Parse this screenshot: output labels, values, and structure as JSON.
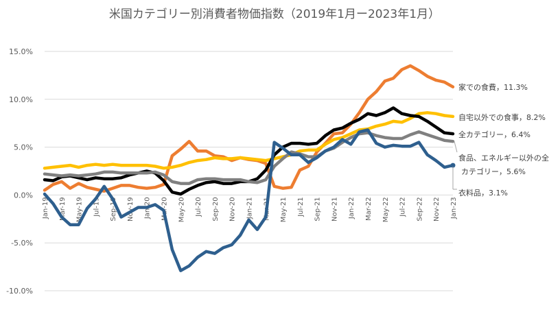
{
  "chart_data": {
    "type": "line",
    "title": "米国カテゴリー別消費者物価指数（2019年1月ー2023年1月）",
    "xlabel": "",
    "ylabel": "",
    "ylim": [
      -10,
      15
    ],
    "yticks": [
      -10,
      -5,
      0,
      5,
      10,
      15
    ],
    "ytick_labels": [
      "-10.0%",
      "-5.0%",
      "0.0%",
      "5.0%",
      "10.0%",
      "15.0%"
    ],
    "grid": true,
    "x": [
      "Jan-19",
      "Feb-19",
      "Mar-19",
      "Apr-19",
      "May-19",
      "Jun-19",
      "Jul-19",
      "Aug-19",
      "Sep-19",
      "Oct-19",
      "Nov-19",
      "Dec-19",
      "Jan-20",
      "Feb-20",
      "Mar-20",
      "Apr-20",
      "May-20",
      "Jun-20",
      "Jul-20",
      "Aug-20",
      "Sep-20",
      "Oct-20",
      "Nov-20",
      "Dec-20",
      "Jan-21",
      "Feb-21",
      "Mar-21",
      "Apr-21",
      "May-21",
      "Jun-21",
      "Jul-21",
      "Aug-21",
      "Sep-21",
      "Oct-21",
      "Nov-21",
      "Dec-21",
      "Jan-22",
      "Feb-22",
      "Mar-22",
      "Apr-22",
      "May-22",
      "Jun-22",
      "Jul-22",
      "Aug-22",
      "Sep-22",
      "Oct-22",
      "Nov-22",
      "Dec-22",
      "Jan-23"
    ],
    "x_tick_labels": [
      "Jan-19",
      "Mar-19",
      "May-19",
      "Jul-19",
      "Sep-19",
      "Nov-19",
      "Jan-20",
      "Mar-20",
      "May-20",
      "Jul-20",
      "Sep-20",
      "Nov-20",
      "Jan-21",
      "Mar-21",
      "May-21",
      "Jul-21",
      "Sep-21",
      "Nov-21",
      "Jan-22",
      "Mar-22",
      "May-22",
      "Jul-22",
      "Sep-22",
      "Nov-22",
      "Jan-23"
    ],
    "series": [
      {
        "name": "家での食費",
        "end_label": "家での食費, 11.3%",
        "color": "#ED7D31",
        "values": [
          0.5,
          1.1,
          1.4,
          0.7,
          1.2,
          0.8,
          0.6,
          0.4,
          0.7,
          1.0,
          1.0,
          0.8,
          0.7,
          0.8,
          1.1,
          4.1,
          4.8,
          5.6,
          4.6,
          4.6,
          4.1,
          4.0,
          3.6,
          3.9,
          3.7,
          3.6,
          3.3,
          0.9,
          0.7,
          0.8,
          2.6,
          3.0,
          4.5,
          5.4,
          6.4,
          6.5,
          7.4,
          8.6,
          10.0,
          10.8,
          11.9,
          12.2,
          13.1,
          13.5,
          13.0,
          12.4,
          12.0,
          11.8,
          11.3
        ]
      },
      {
        "name": "自宅以外での食事",
        "end_label": "自宅以外での食事, 8.2%",
        "color": "#FFC000",
        "values": [
          2.8,
          2.9,
          3.0,
          3.1,
          2.9,
          3.1,
          3.2,
          3.1,
          3.2,
          3.1,
          3.1,
          3.1,
          3.1,
          3.0,
          2.8,
          2.9,
          3.1,
          3.4,
          3.6,
          3.7,
          3.9,
          3.8,
          3.8,
          3.9,
          3.8,
          3.7,
          3.6,
          3.8,
          4.0,
          4.2,
          4.6,
          4.7,
          4.7,
          5.3,
          5.8,
          6.0,
          6.4,
          6.8,
          6.9,
          7.2,
          7.4,
          7.7,
          7.6,
          8.0,
          8.5,
          8.6,
          8.5,
          8.3,
          8.2
        ]
      },
      {
        "name": "全カテゴリー",
        "end_label": "全カテゴリー, 6.4%",
        "color": "#000000",
        "values": [
          1.6,
          1.5,
          1.9,
          2.0,
          1.8,
          1.6,
          1.8,
          1.7,
          1.7,
          1.8,
          2.1,
          2.3,
          2.5,
          2.3,
          1.5,
          0.3,
          0.1,
          0.6,
          1.0,
          1.3,
          1.4,
          1.2,
          1.2,
          1.4,
          1.4,
          1.7,
          2.6,
          4.2,
          5.0,
          5.4,
          5.4,
          5.3,
          5.4,
          6.2,
          6.8,
          7.0,
          7.5,
          7.9,
          8.5,
          8.3,
          8.6,
          9.1,
          8.5,
          8.3,
          8.2,
          7.7,
          7.1,
          6.5,
          6.4
        ]
      },
      {
        "name": "食品、エネルギー以外の全カテゴリー",
        "end_label": "食品、エネルギー以外の全カテゴリー, 5.6%",
        "color": "#808080",
        "values": [
          2.2,
          2.1,
          2.0,
          2.1,
          2.0,
          2.1,
          2.2,
          2.4,
          2.4,
          2.3,
          2.3,
          2.3,
          2.3,
          2.4,
          2.1,
          1.4,
          1.2,
          1.2,
          1.6,
          1.7,
          1.7,
          1.6,
          1.6,
          1.6,
          1.4,
          1.3,
          1.6,
          3.0,
          3.8,
          4.5,
          4.3,
          4.0,
          4.0,
          4.6,
          4.9,
          5.5,
          6.0,
          6.4,
          6.5,
          6.2,
          6.0,
          5.9,
          5.9,
          6.3,
          6.6,
          6.3,
          6.0,
          5.7,
          5.6
        ]
      },
      {
        "name": "衣料品",
        "end_label": "衣料品, 3.1%",
        "color": "#2E5F8E",
        "values": [
          0.1,
          -0.9,
          -2.3,
          -3.1,
          -3.1,
          -1.4,
          -0.4,
          0.9,
          -0.4,
          -2.3,
          -1.8,
          -1.3,
          -1.3,
          -1.0,
          -1.6,
          -5.7,
          -7.9,
          -7.4,
          -6.5,
          -5.9,
          -6.1,
          -5.5,
          -5.2,
          -4.2,
          -2.6,
          -3.6,
          -2.3,
          5.5,
          4.9,
          4.2,
          4.2,
          3.4,
          3.9,
          4.6,
          5.0,
          5.8,
          5.3,
          6.6,
          6.8,
          5.4,
          5.0,
          5.2,
          5.1,
          5.1,
          5.5,
          4.2,
          3.6,
          2.9,
          3.1
        ]
      }
    ]
  }
}
